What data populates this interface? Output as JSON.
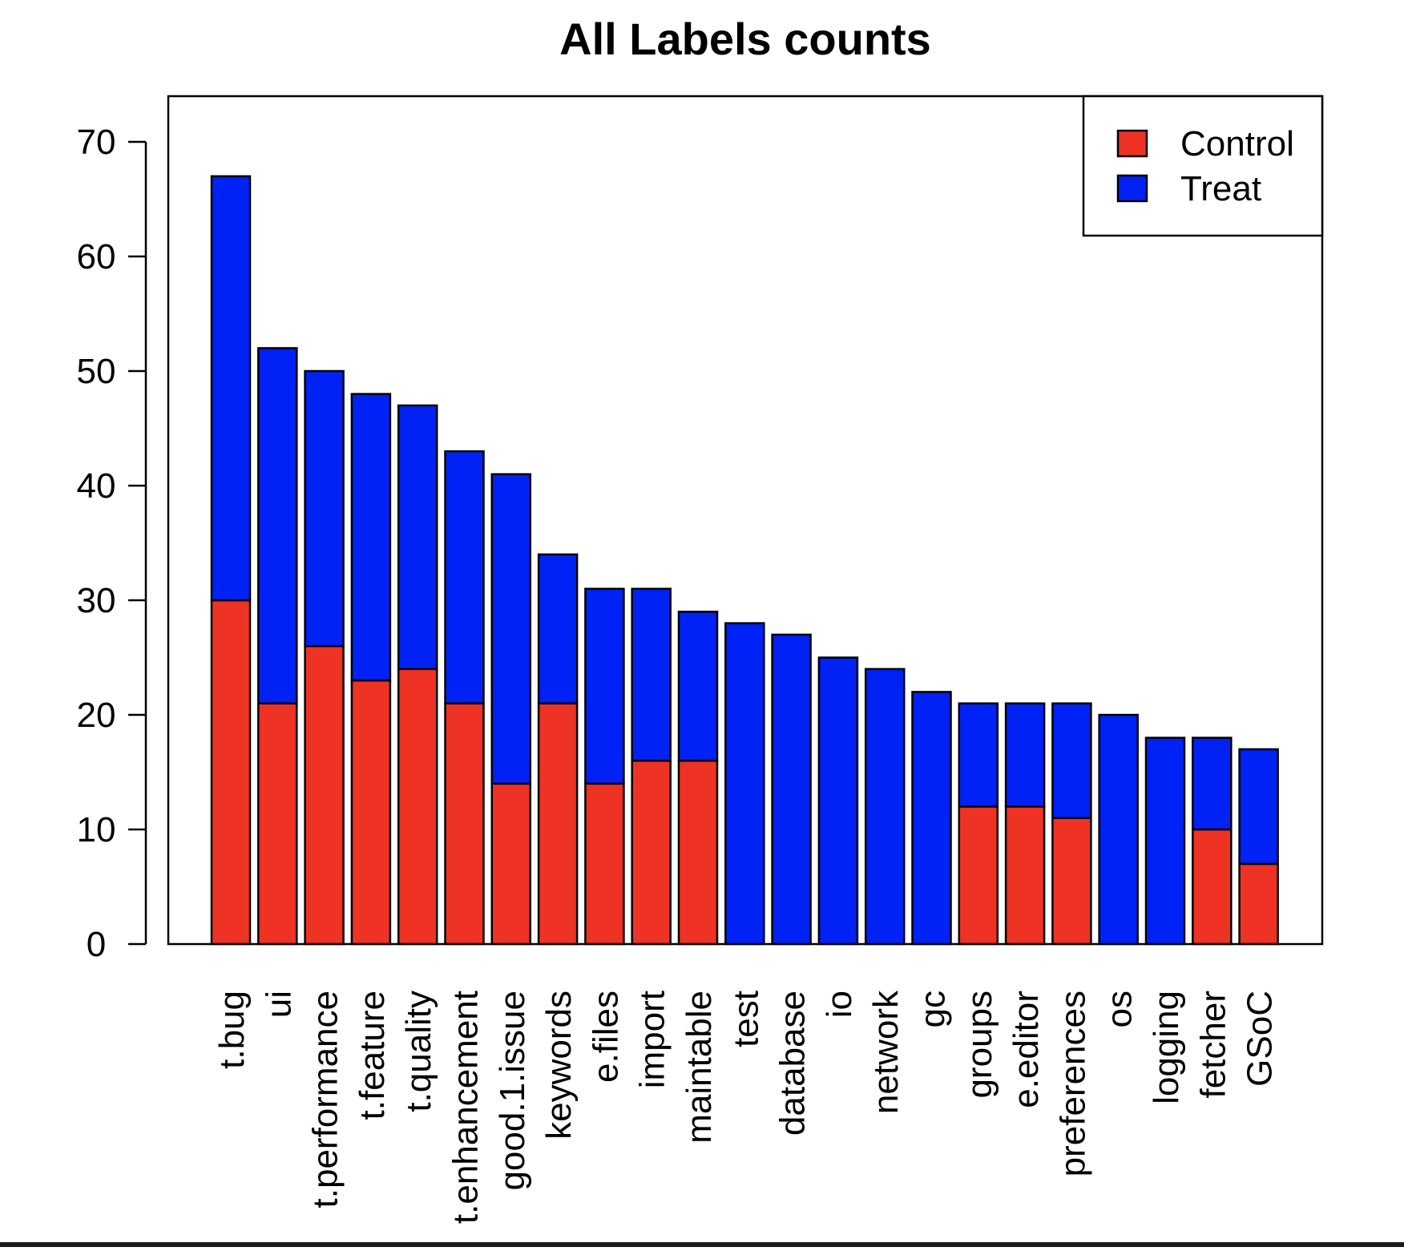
{
  "chart_data": {
    "type": "bar",
    "stacked": true,
    "title": "All Labels counts",
    "xlabel": "",
    "ylabel": "",
    "ylim": [
      0,
      73
    ],
    "yticks": [
      0,
      10,
      20,
      30,
      40,
      50,
      60,
      70
    ],
    "legend_position": "top-right",
    "grid": false,
    "categories": [
      "t.bug",
      "ui",
      "t.performance",
      "t.feature",
      "t.quality",
      "t.enhancement",
      "good.1.issue",
      "keywords",
      "e.files",
      "import",
      "maintable",
      "test",
      "database",
      "io",
      "network",
      "gc",
      "groups",
      "e.editor",
      "preferences",
      "os",
      "logging",
      "fetcher",
      "GSoC"
    ],
    "series": [
      {
        "name": "Control",
        "color": "#ee3224",
        "values": [
          30,
          21,
          26,
          23,
          24,
          21,
          14,
          21,
          14,
          16,
          16,
          0,
          0,
          0,
          0,
          0,
          12,
          12,
          11,
          0,
          0,
          10,
          7
        ]
      },
      {
        "name": "Treat",
        "color": "#0022f5",
        "values": [
          37,
          31,
          24,
          25,
          23,
          22,
          27,
          13,
          17,
          15,
          13,
          28,
          27,
          25,
          24,
          22,
          9,
          9,
          10,
          20,
          18,
          8,
          10
        ]
      }
    ]
  }
}
